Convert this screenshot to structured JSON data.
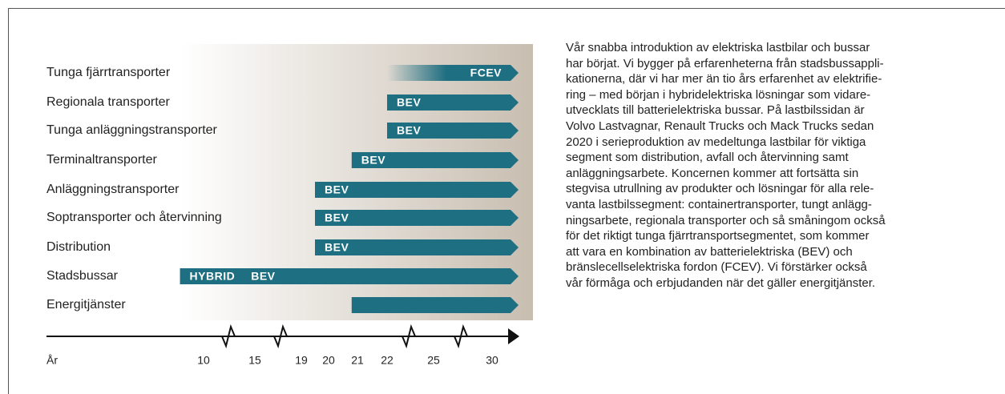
{
  "rows": [
    {
      "label": "Tunga fjärrtransporter",
      "tags": [
        "FCEV"
      ],
      "start": 22
    },
    {
      "label": "Regionala transporter",
      "tags": [
        "BEV"
      ],
      "start": 22
    },
    {
      "label": "Tunga anläggningstransporter",
      "tags": [
        "BEV"
      ],
      "start": 22
    },
    {
      "label": "Terminaltransporter",
      "tags": [
        "BEV"
      ],
      "start": 20.8
    },
    {
      "label": "Anläggningstransporter",
      "tags": [
        "BEV"
      ],
      "start": 19.5
    },
    {
      "label": "Soptransporter och återvinning",
      "tags": [
        "BEV"
      ],
      "start": 19.5
    },
    {
      "label": "Distribution",
      "tags": [
        "BEV"
      ],
      "start": 19.5
    },
    {
      "label": "Stadsbussar",
      "tags": [
        "HYBRID",
        "BEV"
      ],
      "start": 7.7
    },
    {
      "label": "Energitjänster",
      "tags": [],
      "start": 20.8
    }
  ],
  "axis_label": "År",
  "ticks": [
    10,
    15,
    19,
    20,
    21,
    22,
    25,
    30
  ],
  "paragraph": [
    "Vår snabba introduktion av elektriska lastbilar och bussar",
    "har börjat. Vi bygger på erfarenheterna från stadsbussappli-",
    "kationerna, där vi har mer än tio års erfarenhet av elektrifie-",
    "ring – med början i hybridelektriska lösningar som vidare-",
    "utvecklats till batterielektriska bussar. På lastbilssidan är",
    "Volvo Lastvagnar, Renault Trucks och Mack Trucks sedan",
    "2020 i serieproduktion av medeltunga lastbilar för viktiga",
    "segment som distribution, avfall och återvinning samt",
    "anläggningsarbete. Koncernen kommer att fortsätta sin",
    "stegvisa utrullning av produkter och lösningar för alla rele-",
    "vanta lastbilssegment: containertransporter, tungt anlägg-",
    "ningsarbete, regionala transporter och så småningom också",
    "för det riktigt tunga fjärrtransportsegmentet, som kommer",
    "att vara en kombination av batterielektriska (BEV) och",
    "bränslecellselektriska fordon (FCEV). Vi förstärker också",
    "vår förmåga och erbjudanden när det gäller energitjänster."
  ]
}
